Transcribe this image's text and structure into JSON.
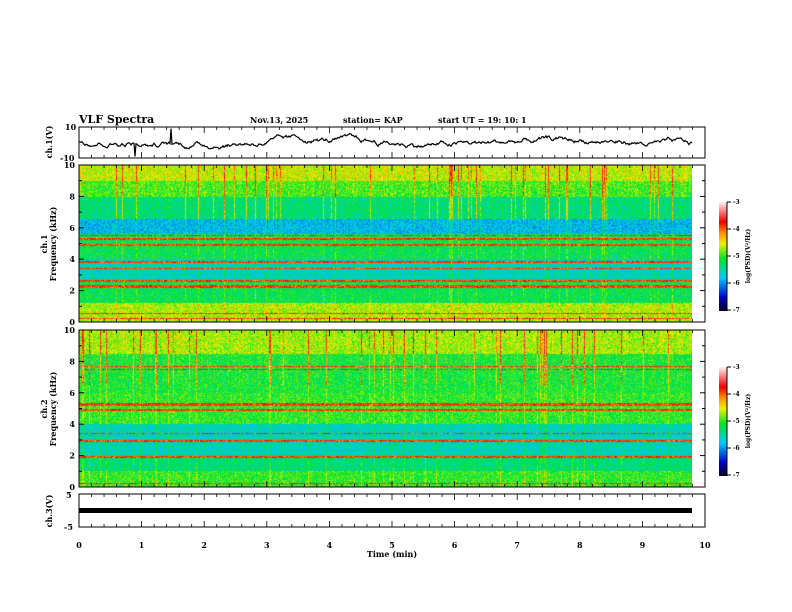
{
  "header": {
    "title": "VLF Spectra",
    "date": "Nov.13, 2025",
    "station": "station= KAP",
    "start_ut": "start  UT =   19: 10: 1"
  },
  "chart_data": [
    {
      "type": "line",
      "name": "ch1 waveform",
      "ylabel": "ch.1(V)",
      "ylim": [
        -10,
        10
      ],
      "yticks": [
        "10",
        "-10"
      ],
      "xlim": [
        0,
        10
      ],
      "data_end_min": 9.8
    },
    {
      "type": "heatmap",
      "name": "ch1 spectrogram",
      "ylabel_line1": "ch.1",
      "ylabel_line2": "Frequency (kHz)",
      "ylim": [
        0,
        10
      ],
      "yticks": [
        "0",
        "2",
        "4",
        "6",
        "8",
        "10"
      ],
      "colorbar": {
        "label": "log(PSD)(V²/Hz)",
        "range": [
          -7,
          -3
        ],
        "ticks": [
          "-3",
          "-4",
          "-5",
          "-6",
          "-7"
        ]
      },
      "strong_lines_khz": [
        0.2,
        0.5,
        2.2,
        2.3,
        2.6,
        3.4,
        3.8,
        4.9,
        5.3,
        5.5
      ]
    },
    {
      "type": "heatmap",
      "name": "ch2 spectrogram",
      "ylabel_line1": "ch.2",
      "ylabel_line2": "Frequency (kHz)",
      "ylim": [
        0,
        10
      ],
      "yticks": [
        "0",
        "2",
        "4",
        "6",
        "8",
        "10"
      ],
      "colorbar": {
        "label": "log(PSD)(V²/Hz)",
        "range": [
          -7,
          -3
        ],
        "ticks": [
          "-3",
          "-4",
          "-5",
          "-6",
          "-7"
        ]
      },
      "strong_lines_khz": [
        0.2,
        1.9,
        2.9,
        3.4,
        4.9,
        5.2,
        5.3,
        7.5,
        7.7
      ]
    },
    {
      "type": "line",
      "name": "ch3 waveform",
      "ylabel": "ch.3(V)",
      "ylim": [
        -5,
        5
      ],
      "yticks": [
        "5",
        "-5"
      ],
      "level_v": -1
    }
  ],
  "xaxis": {
    "label": "Time  (min)",
    "ticks": [
      "0",
      "1",
      "2",
      "3",
      "4",
      "5",
      "6",
      "7",
      "8",
      "9",
      "10"
    ]
  },
  "colors": {
    "axis": "#000000",
    "waveform": "#000000"
  }
}
